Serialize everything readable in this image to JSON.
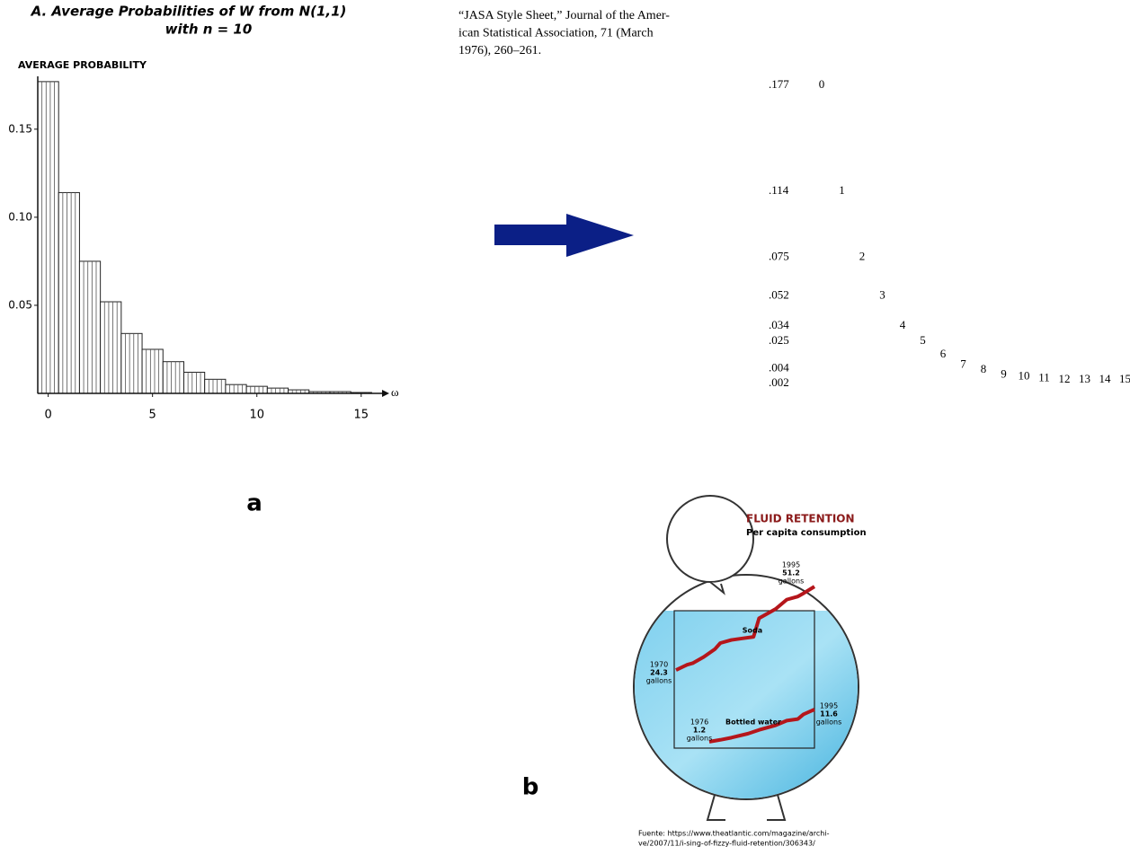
{
  "chart_data": [
    {
      "type": "bar",
      "title": "A. Average Probabilities of W from N(1,1)",
      "subtitle": "with n = 10",
      "y_label": "AVERAGE PROBABILITY",
      "x_label": "ω",
      "panel": "a",
      "color": "#222222",
      "x": [
        0,
        1,
        2,
        3,
        4,
        5,
        6,
        7,
        8,
        9,
        10,
        11,
        12,
        13,
        14,
        15
      ],
      "values": [
        0.177,
        0.114,
        0.075,
        0.052,
        0.034,
        0.025,
        0.018,
        0.012,
        0.008,
        0.005,
        0.004,
        0.003,
        0.002,
        0.001,
        0.001,
        0.0005
      ],
      "xlim": [
        -0.5,
        16
      ],
      "xticks": [
        0,
        5,
        10,
        15
      ],
      "ylim": [
        0,
        0.18
      ],
      "yticks": [
        0.05,
        {
          "value": 0.1,
          "label": "0.10"
        },
        0.15
      ]
    },
    {
      "type": "text-plot",
      "citation_lines": [
        "“JASA Style Sheet,” Journal of the Amer-",
        "ican Statistical Association, 71 (March",
        "1976), 260–261."
      ],
      "categories": [
        0,
        1,
        2,
        3,
        4,
        5,
        6,
        7,
        8,
        9,
        10,
        11,
        12,
        13,
        14,
        15
      ],
      "values": [
        0.177,
        0.114,
        0.075,
        0.052,
        0.034,
        0.025,
        0.017,
        0.011,
        0.008,
        0.005,
        0.004,
        0.003,
        0.002,
        0.002,
        0.002,
        0.002
      ],
      "ylim": [
        0,
        0.18
      ],
      "yticks": [
        {
          "value": 0.177,
          "label": ".177"
        },
        {
          "value": 0.114,
          "label": ".114"
        },
        {
          "value": 0.075,
          "label": ".075"
        },
        {
          "value": 0.052,
          "label": ".052"
        },
        {
          "value": 0.034,
          "label": ".034"
        },
        {
          "value": 0.025,
          "label": ".025"
        },
        {
          "value": 0.004,
          "label": ".004"
        },
        {
          "value": 0.002,
          "label": ".002"
        }
      ]
    },
    {
      "type": "line",
      "title": "FLUID RETENTION",
      "subtitle": "Per capita consumption",
      "panel": "b",
      "unit": "gallons",
      "source_lines": [
        "Fuente: https://www.theatlantic.com/magazine/archi-",
        "ve/2007/11/i-sing-of-fizzy-fluid-retention/306343/"
      ],
      "xlim": [
        1970,
        1995
      ],
      "ylim": [
        0,
        55
      ],
      "series": [
        {
          "name": "Soda",
          "color": "#b5161b",
          "x": [
            1970,
            1972,
            1973,
            1975,
            1977,
            1978,
            1980,
            1982,
            1984,
            1985,
            1987,
            1988,
            1990,
            1992,
            1993,
            1995
          ],
          "values": [
            24.3,
            26,
            26.5,
            28.5,
            31,
            33,
            34,
            34.5,
            35,
            41,
            43,
            44,
            47,
            48,
            49,
            51.2
          ]
        },
        {
          "name": "Bottled water",
          "color": "#b5161b",
          "x": [
            1976,
            1978,
            1980,
            1983,
            1985,
            1988,
            1990,
            1992,
            1993,
            1995
          ],
          "values": [
            1.2,
            1.8,
            2.5,
            3.8,
            5,
            6.5,
            8,
            8.5,
            10,
            11.6
          ]
        }
      ]
    }
  ]
}
